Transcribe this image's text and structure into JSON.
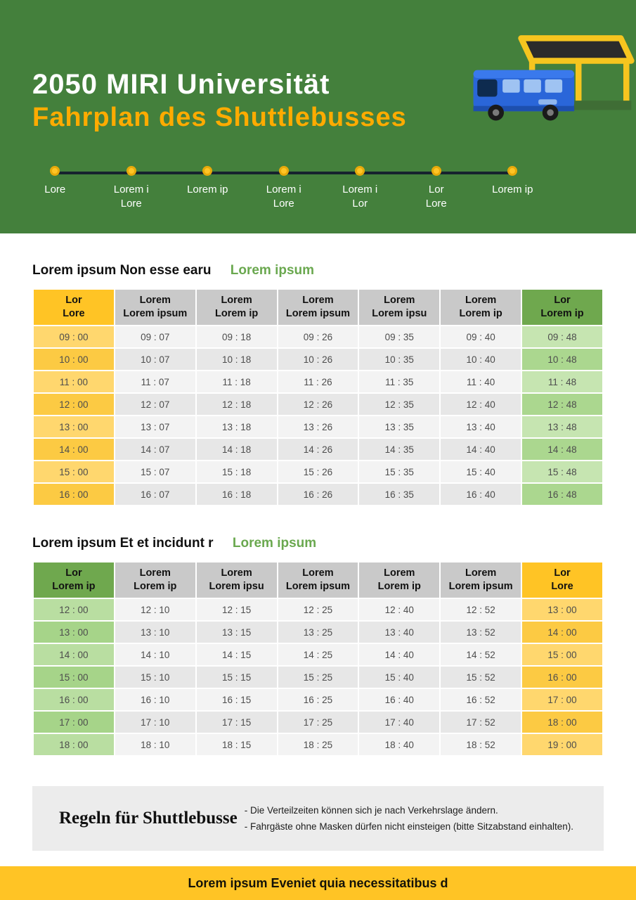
{
  "colors": {
    "header_green": "#44803C",
    "accent_yellow": "#FFC425",
    "subtitle_orange": "#FFAB00",
    "table_header_gray": "#C9C9C9",
    "table_header_green": "#6FA84E",
    "section_accent_green": "#6AA84F",
    "route_line": "#16222E"
  },
  "header": {
    "title": "2050 MIRI Universität",
    "subtitle": "Fahrplan des Shuttlebusses",
    "illustration": "bus-and-shelter",
    "stops": [
      "Lore",
      "Lorem i\nLore",
      "Lorem ip",
      "Lorem i\nLore",
      "Lorem i\nLor",
      "Lor\nLore",
      "Lorem ip"
    ]
  },
  "sections": [
    {
      "title": "Lorem ipsum Non esse earu",
      "accent": "Lorem ipsum",
      "table": {
        "headers": [
          "Lor\nLore",
          "Lorem\nLorem ipsum",
          "Lorem\nLorem ip",
          "Lorem\nLorem ipsum",
          "Lorem\nLorem ipsu",
          "Lorem\nLorem ip",
          "Lor\nLorem ip"
        ],
        "rows": [
          [
            "09 : 00",
            "09 : 07",
            "09 : 18",
            "09 : 26",
            "09 : 35",
            "09 : 40",
            "09 : 48"
          ],
          [
            "10 : 00",
            "10 : 07",
            "10 : 18",
            "10 : 26",
            "10 : 35",
            "10 : 40",
            "10 : 48"
          ],
          [
            "11 : 00",
            "11 : 07",
            "11 : 18",
            "11 : 26",
            "11 : 35",
            "11 : 40",
            "11 : 48"
          ],
          [
            "12 : 00",
            "12 : 07",
            "12 : 18",
            "12 : 26",
            "12 : 35",
            "12 : 40",
            "12 : 48"
          ],
          [
            "13 : 00",
            "13 : 07",
            "13 : 18",
            "13 : 26",
            "13 : 35",
            "13 : 40",
            "13 : 48"
          ],
          [
            "14 : 00",
            "14 : 07",
            "14 : 18",
            "14 : 26",
            "14 : 35",
            "14 : 40",
            "14 : 48"
          ],
          [
            "15 : 00",
            "15 : 07",
            "15 : 18",
            "15 : 26",
            "15 : 35",
            "15 : 40",
            "15 : 48"
          ],
          [
            "16 : 00",
            "16 : 07",
            "16 : 18",
            "16 : 26",
            "16 : 35",
            "16 : 40",
            "16 : 48"
          ]
        ]
      }
    },
    {
      "title": "Lorem ipsum Et et incidunt r",
      "accent": "Lorem ipsum",
      "table": {
        "headers": [
          "Lor\nLorem ip",
          "Lorem\nLorem ip",
          "Lorem\nLorem ipsu",
          "Lorem\nLorem ipsum",
          "Lorem\nLorem ip",
          "Lorem\nLorem ipsum",
          "Lor\nLore"
        ],
        "rows": [
          [
            "12 : 00",
            "12 : 10",
            "12 : 15",
            "12 : 25",
            "12 : 40",
            "12 : 52",
            "13 : 00"
          ],
          [
            "13 : 00",
            "13 : 10",
            "13 : 15",
            "13 : 25",
            "13 : 40",
            "13 : 52",
            "14 : 00"
          ],
          [
            "14 : 00",
            "14 : 10",
            "14 : 15",
            "14 : 25",
            "14 : 40",
            "14 : 52",
            "15 : 00"
          ],
          [
            "15 : 00",
            "15 : 10",
            "15 : 15",
            "15 : 25",
            "15 : 40",
            "15 : 52",
            "16 : 00"
          ],
          [
            "16 : 00",
            "16 : 10",
            "16 : 15",
            "16 : 25",
            "16 : 40",
            "16 : 52",
            "17 : 00"
          ],
          [
            "17 : 00",
            "17 : 10",
            "17 : 15",
            "17 : 25",
            "17 : 40",
            "17 : 52",
            "18 : 00"
          ],
          [
            "18 : 00",
            "18 : 10",
            "18 : 15",
            "18 : 25",
            "18 : 40",
            "18 : 52",
            "19 : 00"
          ]
        ]
      }
    }
  ],
  "rules": {
    "title": "Regeln für Shuttlebusse",
    "lines": [
      "- Die Verteilzeiten können sich je nach Verkehrslage ändern.",
      "- Fahrgäste ohne Masken dürfen nicht einsteigen (bitte Sitzabstand einhalten)."
    ]
  },
  "footer": {
    "text": "Lorem ipsum Eveniet quia necessitatibus d"
  }
}
